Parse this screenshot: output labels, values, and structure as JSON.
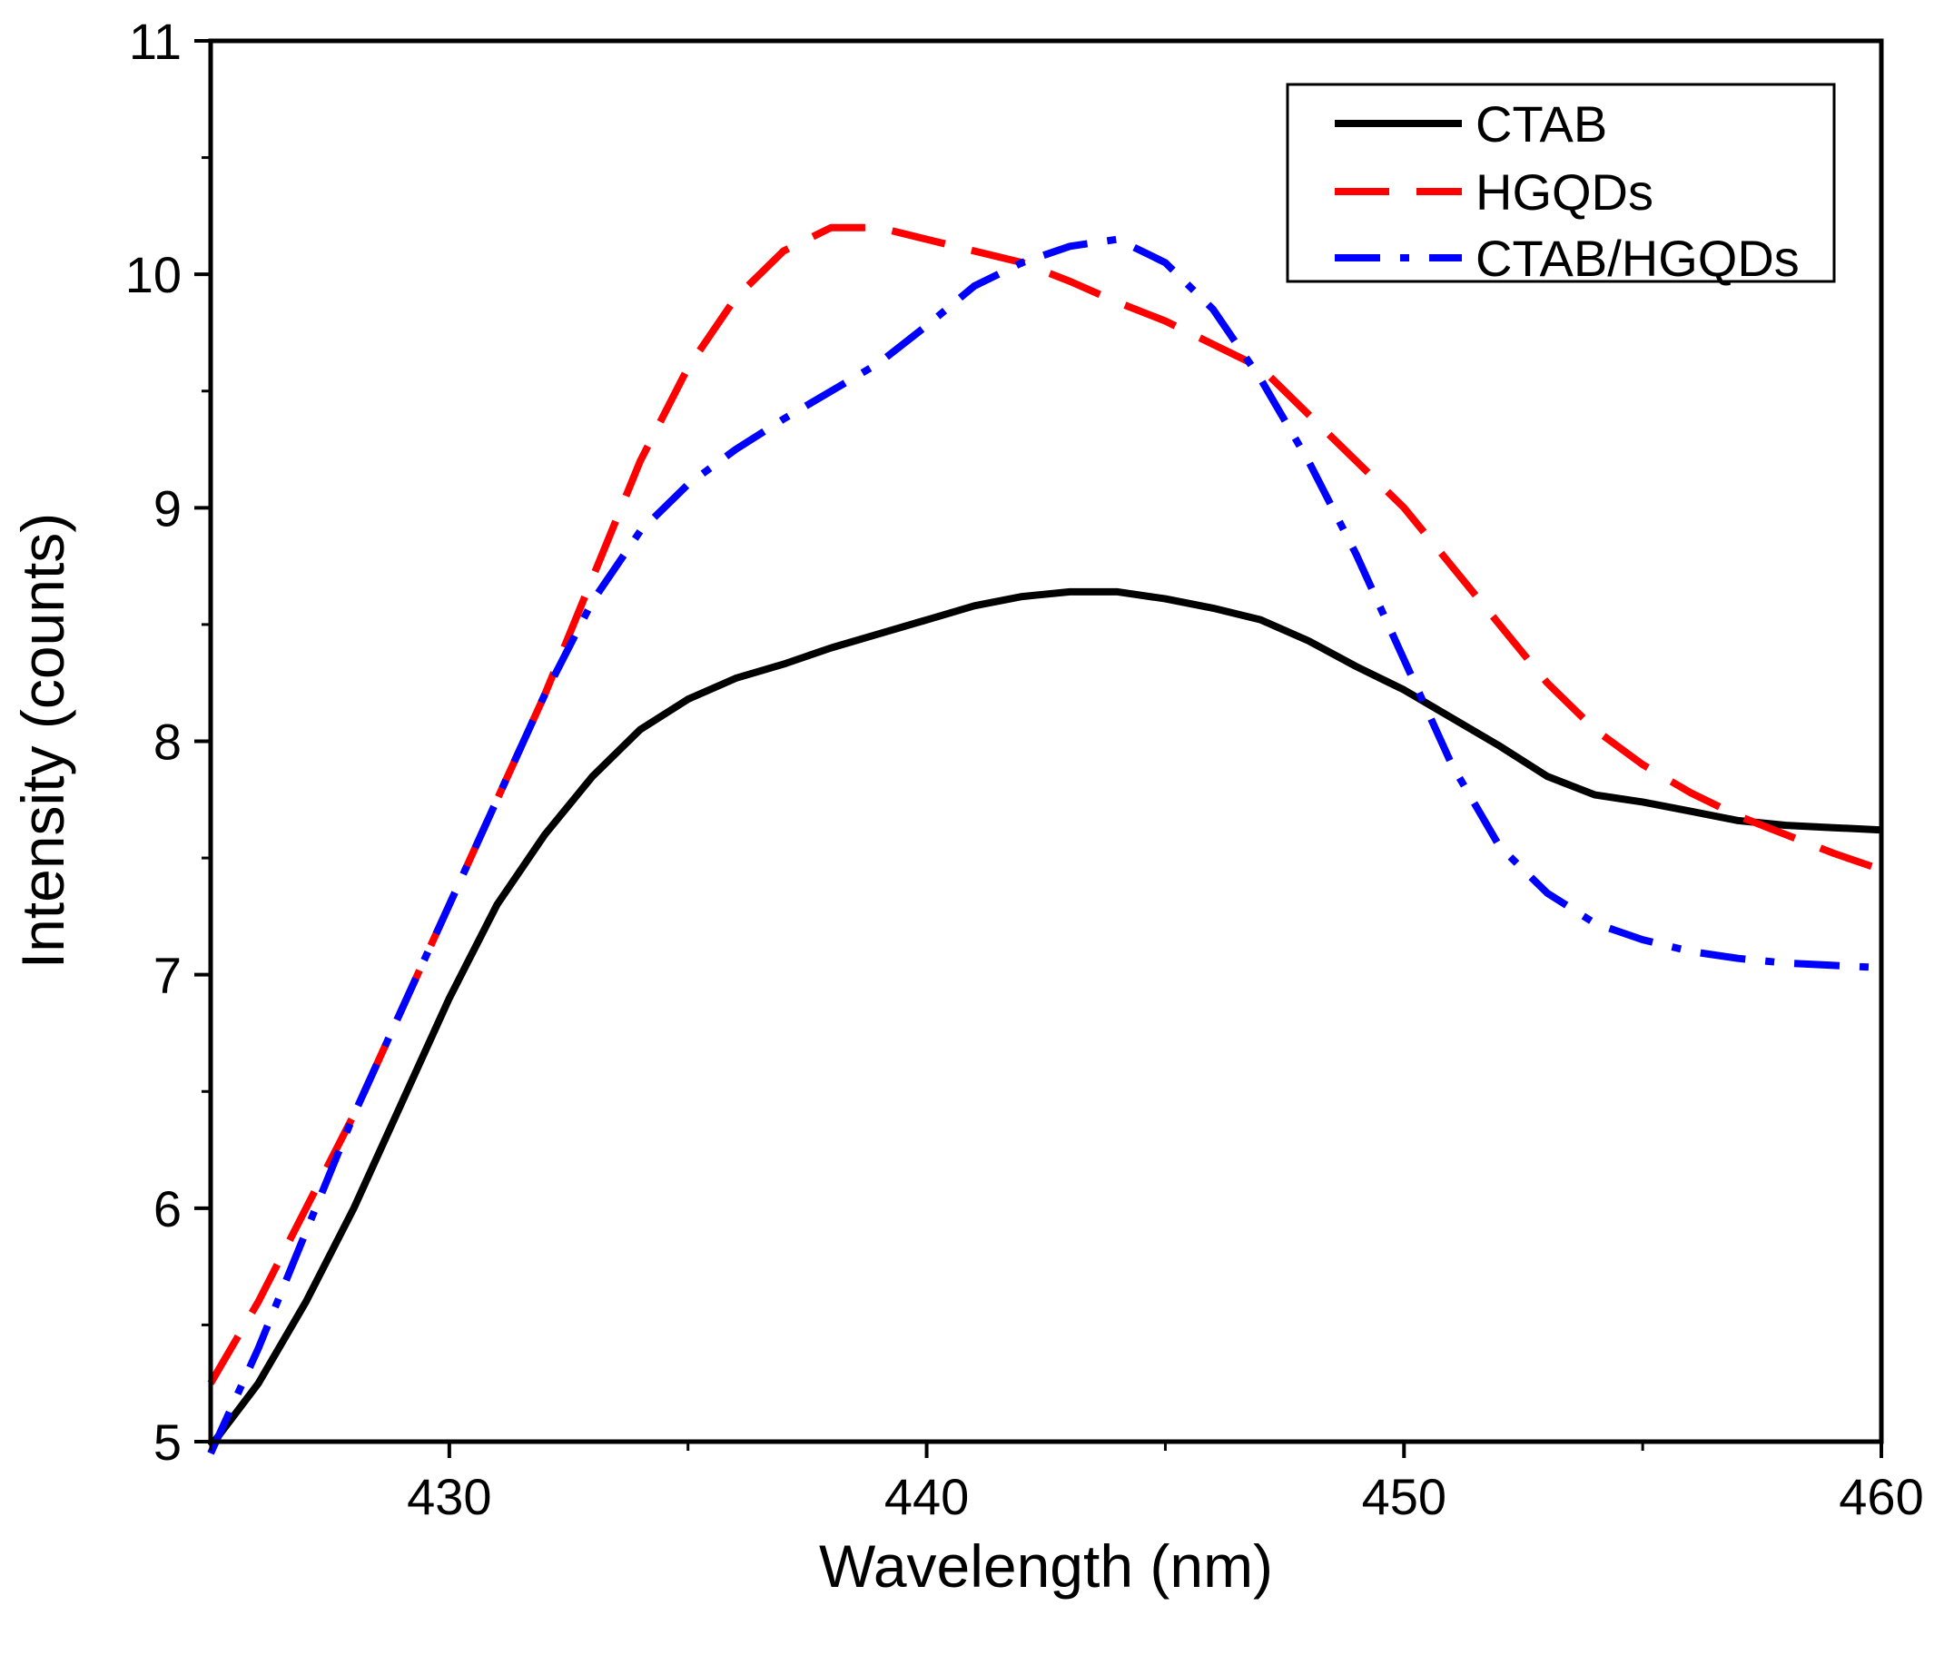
{
  "chart_data": {
    "type": "line",
    "title": "",
    "xlabel": "Wavelength (nm)",
    "ylabel": "Intensity (counts)",
    "xlim": [
      425,
      460
    ],
    "ylim": [
      5,
      11
    ],
    "x_ticks": [
      430,
      440,
      450,
      460
    ],
    "y_ticks": [
      5,
      6,
      7,
      8,
      9,
      10,
      11
    ],
    "x_tick_labels": [
      "430",
      "440",
      "450",
      "460"
    ],
    "y_tick_labels": [
      "5",
      "6",
      "7",
      "8",
      "9",
      "10",
      "11"
    ],
    "grid": false,
    "legend_position": "top-right",
    "series": [
      {
        "name": "CTAB",
        "color": "#000000",
        "style": "solid",
        "x": [
          425,
          426,
          427,
          428,
          429,
          430,
          431,
          432,
          433,
          434,
          435,
          436,
          437,
          438,
          439,
          440,
          441,
          442,
          443,
          444,
          445,
          446,
          447,
          448,
          449,
          450,
          451,
          452,
          453,
          454,
          455,
          456,
          457,
          458,
          459,
          460
        ],
        "y": [
          4.98,
          5.25,
          5.6,
          6.0,
          6.45,
          6.9,
          7.3,
          7.6,
          7.85,
          8.05,
          8.18,
          8.27,
          8.33,
          8.4,
          8.46,
          8.52,
          8.58,
          8.62,
          8.64,
          8.64,
          8.61,
          8.57,
          8.52,
          8.43,
          8.32,
          8.22,
          8.1,
          7.98,
          7.85,
          7.77,
          7.74,
          7.7,
          7.66,
          7.64,
          7.63,
          7.62
        ]
      },
      {
        "name": "HGQDs",
        "color": "#ff0000",
        "style": "dashed",
        "x": [
          425,
          426,
          427,
          428,
          429,
          430,
          431,
          432,
          433,
          434,
          435,
          436,
          437,
          438,
          439,
          440,
          441,
          442,
          443,
          444,
          445,
          446,
          447,
          448,
          449,
          450,
          451,
          452,
          453,
          454,
          455,
          456,
          457,
          458,
          459,
          460
        ],
        "y": [
          5.25,
          5.6,
          6.0,
          6.4,
          6.85,
          7.3,
          7.75,
          8.2,
          8.7,
          9.2,
          9.6,
          9.9,
          10.1,
          10.2,
          10.2,
          10.15,
          10.1,
          10.05,
          9.97,
          9.88,
          9.8,
          9.7,
          9.6,
          9.4,
          9.2,
          9.0,
          8.75,
          8.5,
          8.25,
          8.05,
          7.9,
          7.78,
          7.68,
          7.6,
          7.52,
          7.45
        ]
      },
      {
        "name": "CTAB/HGQDs",
        "color": "#0000ff",
        "style": "dashdot",
        "x": [
          425,
          426,
          427,
          428,
          429,
          430,
          431,
          432,
          433,
          434,
          435,
          436,
          437,
          438,
          439,
          440,
          441,
          442,
          443,
          444,
          445,
          446,
          447,
          448,
          449,
          450,
          451,
          452,
          453,
          454,
          455,
          456,
          457,
          458,
          459,
          460
        ],
        "y": [
          4.95,
          5.4,
          5.9,
          6.4,
          6.85,
          7.3,
          7.75,
          8.2,
          8.6,
          8.9,
          9.1,
          9.25,
          9.38,
          9.5,
          9.62,
          9.78,
          9.95,
          10.05,
          10.12,
          10.15,
          10.05,
          9.85,
          9.55,
          9.2,
          8.8,
          8.35,
          7.9,
          7.55,
          7.35,
          7.22,
          7.15,
          7.1,
          7.07,
          7.05,
          7.04,
          7.03
        ]
      }
    ]
  }
}
